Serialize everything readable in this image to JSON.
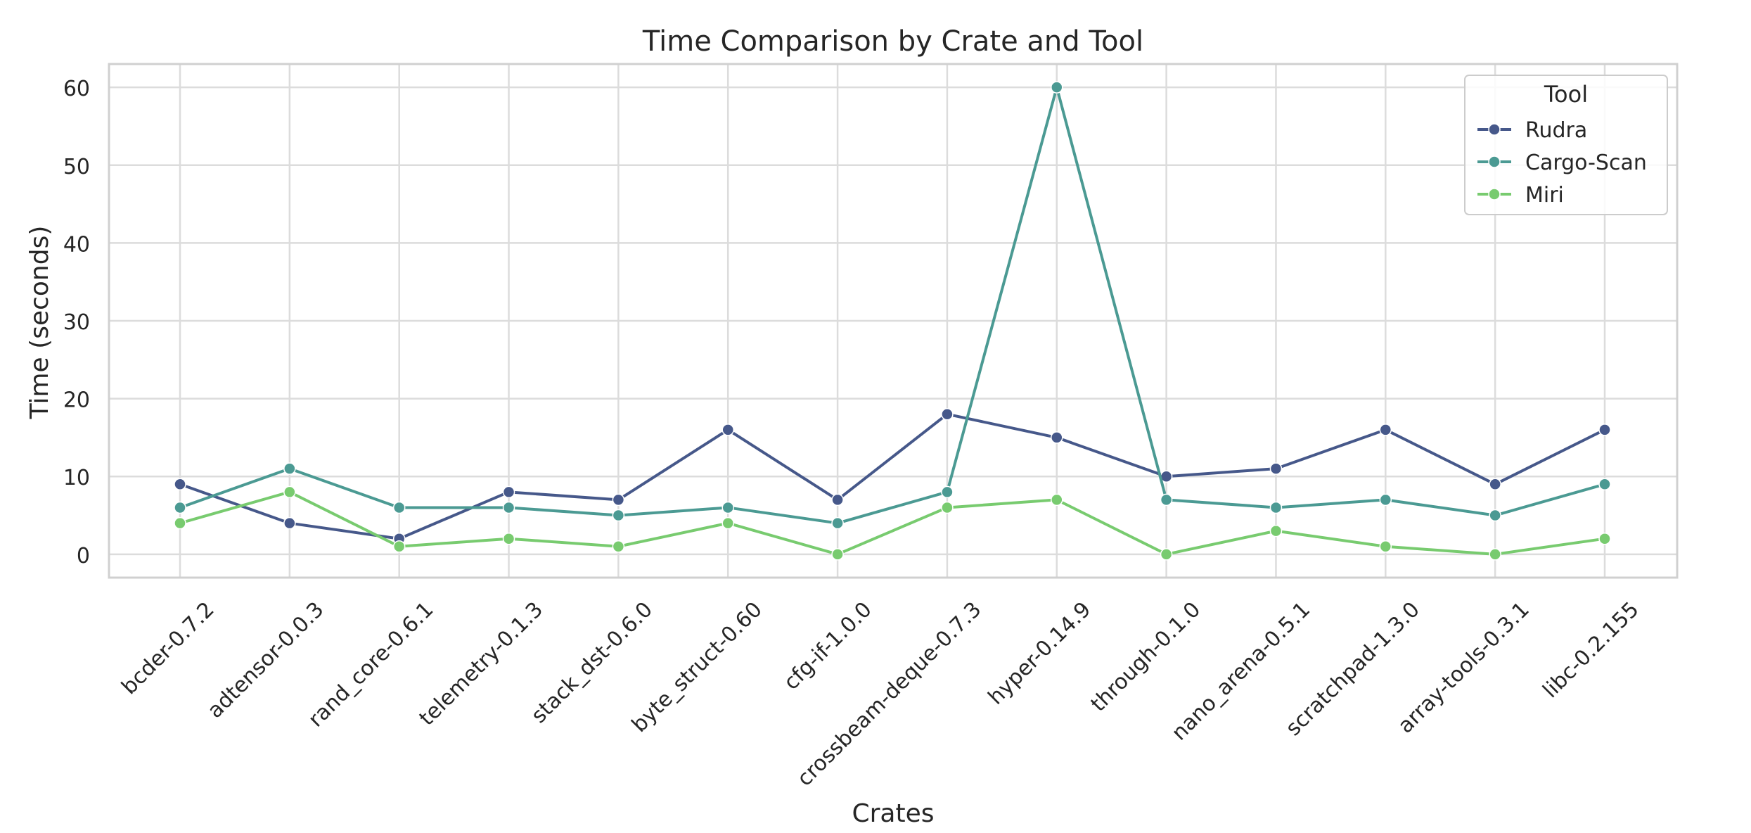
{
  "chart_data": {
    "type": "line",
    "title": "Time Comparison by Crate and Tool",
    "xlabel": "Crates",
    "ylabel": "Time (seconds)",
    "ylim": [
      -3,
      63
    ],
    "yticks": [
      0,
      10,
      20,
      30,
      40,
      50,
      60
    ],
    "grid": true,
    "legend_position": "top-right",
    "legend_title": "Tool",
    "categories": [
      "bcder-0.7.2",
      "adtensor-0.0.3",
      "rand_core-0.6.1",
      "telemetry-0.1.3",
      "stack_dst-0.6.0",
      "byte_struct-0.60",
      "cfg-if-1.0.0",
      "crossbeam-deque-0.7.3",
      "hyper-0.14.9",
      "through-0.1.0",
      "nano_arena-0.5.1",
      "scratchpad-1.3.0",
      "array-tools-0.3.1",
      "libc-0.2.155"
    ],
    "series": [
      {
        "name": "Rudra",
        "color": "#46588a",
        "values": [
          9,
          4,
          2,
          8,
          7,
          16,
          7,
          18,
          15,
          10,
          11,
          16,
          9,
          16
        ]
      },
      {
        "name": "Cargo-Scan",
        "color": "#4b9a93",
        "values": [
          6,
          11,
          6,
          6,
          5,
          6,
          4,
          8,
          60,
          7,
          6,
          7,
          5,
          9
        ]
      },
      {
        "name": "Miri",
        "color": "#78cb6f",
        "values": [
          4,
          8,
          1,
          2,
          1,
          4,
          0,
          6,
          7,
          0,
          3,
          1,
          0,
          2
        ]
      }
    ]
  }
}
